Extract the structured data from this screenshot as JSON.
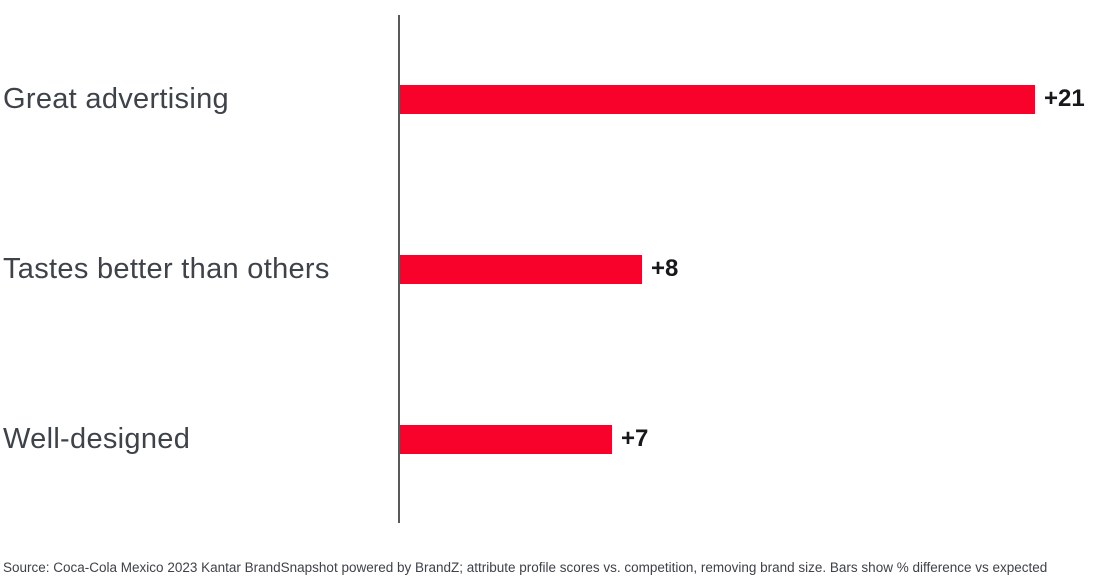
{
  "chart_data": {
    "type": "bar",
    "orientation": "horizontal",
    "title": "",
    "xlabel": "",
    "ylabel": "",
    "grid": false,
    "legend": false,
    "categories": [
      "Great advertising",
      "Tastes better than others",
      "Well-designed"
    ],
    "values": [
      21,
      8,
      7
    ],
    "value_labels": [
      "+21",
      "+8",
      "+7"
    ],
    "xlim": [
      0,
      22
    ],
    "bar_color": "#f8022b",
    "axis_line_color": "#58595b",
    "label_color": "#3e4249",
    "value_label_color": "#17181b",
    "source": "Source: Coca-Cola Mexico 2023 Kantar BrandSnapshot powered by BrandZ; attribute profile scores vs. competition, removing brand size. Bars show % difference vs expected"
  }
}
